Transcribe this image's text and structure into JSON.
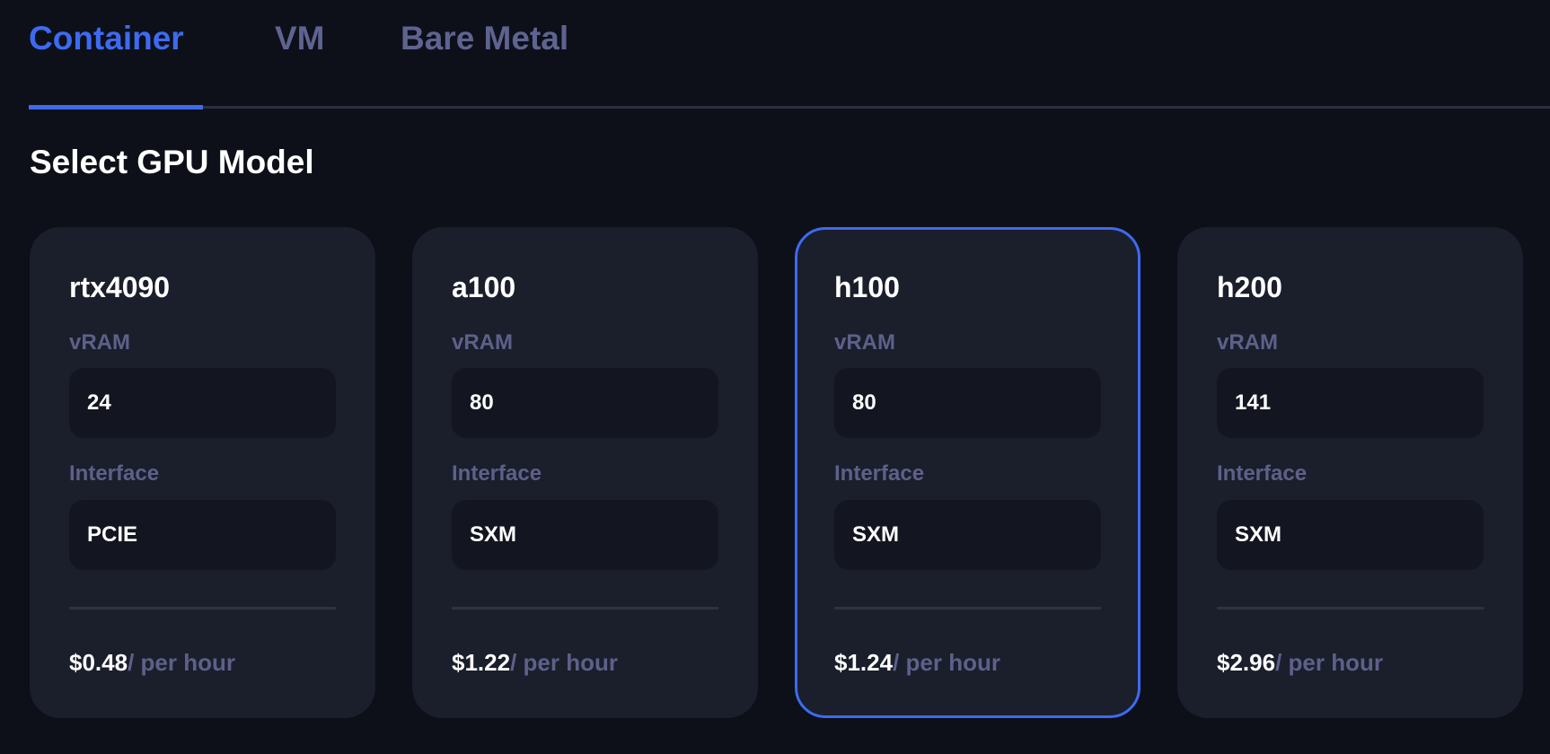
{
  "tabs": [
    {
      "label": "Container",
      "active": true
    },
    {
      "label": "VM",
      "active": false
    },
    {
      "label": "Bare Metal",
      "active": false
    }
  ],
  "section_title": "Select GPU Model",
  "colors": {
    "accent": "#3d6af0",
    "background": "#0d1018",
    "card": "#1b1e2b",
    "muted": "#5d6189"
  },
  "labels": {
    "vram": "vRAM",
    "interface": "Interface",
    "per_hour": "/ per hour"
  },
  "cards": [
    {
      "name": "rtx4090",
      "vram": "24",
      "interface": "PCIE",
      "price": "$0.48",
      "selected": false
    },
    {
      "name": "a100",
      "vram": "80",
      "interface": "SXM",
      "price": "$1.22",
      "selected": false
    },
    {
      "name": "h100",
      "vram": "80",
      "interface": "SXM",
      "price": "$1.24",
      "selected": true
    },
    {
      "name": "h200",
      "vram": "141",
      "interface": "SXM",
      "price": "$2.96",
      "selected": false
    }
  ]
}
